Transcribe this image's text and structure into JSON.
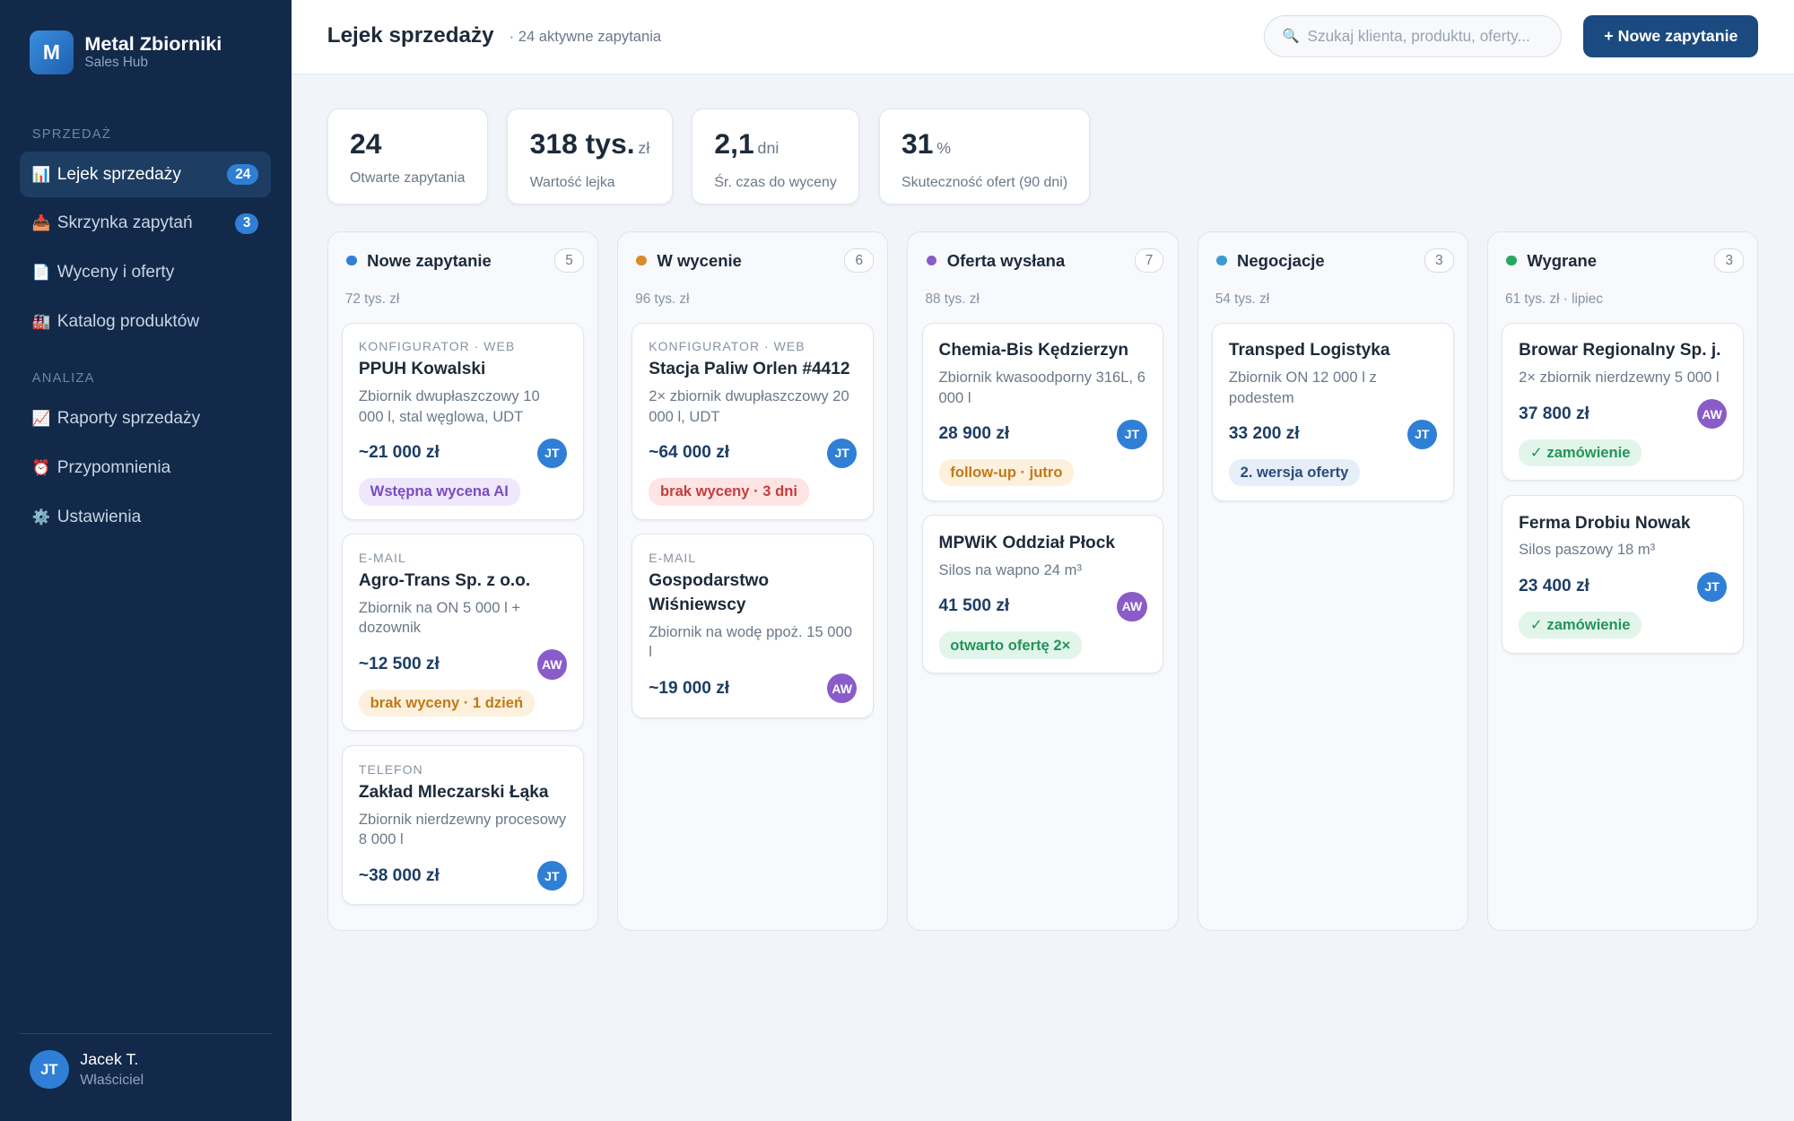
{
  "sidebar": {
    "brand": {
      "logo": "M",
      "name": "Metal Zbiorniki",
      "sub": "Sales Hub"
    },
    "sections": [
      {
        "title": "SPRZEDAŻ",
        "items": [
          {
            "icon": "📊",
            "label": "Lejek sprzedaży",
            "badge": 24,
            "active": true
          },
          {
            "icon": "📥",
            "label": "Skrzynka zapytań",
            "badge": 3
          },
          {
            "icon": "📄",
            "label": "Wyceny i oferty"
          },
          {
            "icon": "🏭",
            "label": "Katalog produktów"
          }
        ]
      },
      {
        "title": "ANALIZA",
        "items": [
          {
            "icon": "📈",
            "label": "Raporty sprzedaży"
          },
          {
            "icon": "⏰",
            "label": "Przypomnienia"
          },
          {
            "icon": "⚙️",
            "label": "Ustawienia"
          }
        ]
      }
    ],
    "user": {
      "initials": "JT",
      "name": "Jacek T.",
      "role": "Właściciel"
    }
  },
  "header": {
    "title": "Lejek sprzedaży",
    "subtitle": "· 24 aktywne zapytania",
    "search_icon": "🔍",
    "search_placeholder": "Szukaj klienta, produktu, oferty...",
    "button": "+ Nowe zapytanie"
  },
  "stats": [
    {
      "value": "24",
      "label": "Otwarte zapytania"
    },
    {
      "value": "318 tys.",
      "unit": "zł",
      "label": "Wartość lejka"
    },
    {
      "value": "2,1",
      "unit": "dni",
      "label": "Śr. czas do wyceny"
    },
    {
      "value": "31",
      "unit": "%",
      "label": "Skuteczność ofert (90 dni)"
    }
  ],
  "columns": [
    {
      "name": "Nowe zapytanie",
      "count": 5,
      "total": "72 tys. zł",
      "color": "#2f7fd6",
      "cards": [
        {
          "source": "KONFIGURATOR · WEB",
          "name": "PPUH Kowalski",
          "desc": "Zbiornik dwupłaszczowy 10 000 l, stal węglowa, UDT",
          "amount": "~21 000 zł",
          "owner": "JT",
          "tag": "Wstępna wycena AI",
          "tone": "purple"
        },
        {
          "source": "E-MAIL",
          "name": "Agro-Trans Sp. z o.o.",
          "desc": "Zbiornik na ON 5 000 l + dozownik",
          "amount": "~12 500 zł",
          "owner": "AW",
          "tag": "brak wyceny · 1 dzień",
          "tone": "orange"
        },
        {
          "source": "TELEFON",
          "name": "Zakład Mleczarski Łąka",
          "desc": "Zbiornik nierdzewny procesowy 8 000 l",
          "amount": "~38 000 zł",
          "owner": "JT"
        }
      ]
    },
    {
      "name": "W wycenie",
      "count": 6,
      "total": "96 tys. zł",
      "color": "#d98a2b",
      "cards": [
        {
          "source": "KONFIGURATOR · WEB",
          "name": "Stacja Paliw Orlen #4412",
          "desc": "2× zbiornik dwupłaszczowy 20 000 l, UDT",
          "amount": "~64 000 zł",
          "owner": "JT",
          "tag": "brak wyceny · 3 dni",
          "tone": "red"
        },
        {
          "source": "E-MAIL",
          "name": "Gospodarstwo Wiśniewscy",
          "desc": "Zbiornik na wodę ppoż. 15 000 l",
          "amount": "~19 000 zł",
          "owner": "AW"
        }
      ]
    },
    {
      "name": "Oferta wysłana",
      "count": 7,
      "total": "88 tys. zł",
      "color": "#8a5cc9",
      "cards": [
        {
          "name": "Chemia-Bis Kędzierzyn",
          "desc": "Zbiornik kwasoodporny 316L, 6 000 l",
          "amount": "28 900 zł",
          "owner": "JT",
          "tag": "follow-up · jutro",
          "tone": "orange"
        },
        {
          "name": "MPWiK Oddział Płock",
          "desc": "Silos na wapno 24 m³",
          "amount": "41 500 zł",
          "owner": "AW",
          "tag": "otwarto ofertę 2×",
          "tone": "green"
        }
      ]
    },
    {
      "name": "Negocjacje",
      "count": 3,
      "total": "54 tys. zł",
      "color": "#3a9bd0",
      "cards": [
        {
          "name": "Transped Logistyka",
          "desc": "Zbiornik ON 12 000 l z podestem",
          "amount": "33 200 zł",
          "owner": "JT",
          "tag": "2. wersja oferty",
          "tone": "blue"
        }
      ]
    },
    {
      "name": "Wygrane",
      "count": 3,
      "total": "61 tys. zł · lipiec",
      "color": "#23a862",
      "cards": [
        {
          "name": "Browar Regionalny Sp. j.",
          "desc": "2× zbiornik nierdzewny 5 000 l",
          "amount": "37 800 zł",
          "owner": "AW",
          "tag": "✓ zamówienie",
          "tone": "green"
        },
        {
          "name": "Ferma Drobiu Nowak",
          "desc": "Silos paszowy 18 m³",
          "amount": "23 400 zł",
          "owner": "JT",
          "tag": "✓ zamówienie",
          "tone": "green"
        }
      ]
    }
  ]
}
